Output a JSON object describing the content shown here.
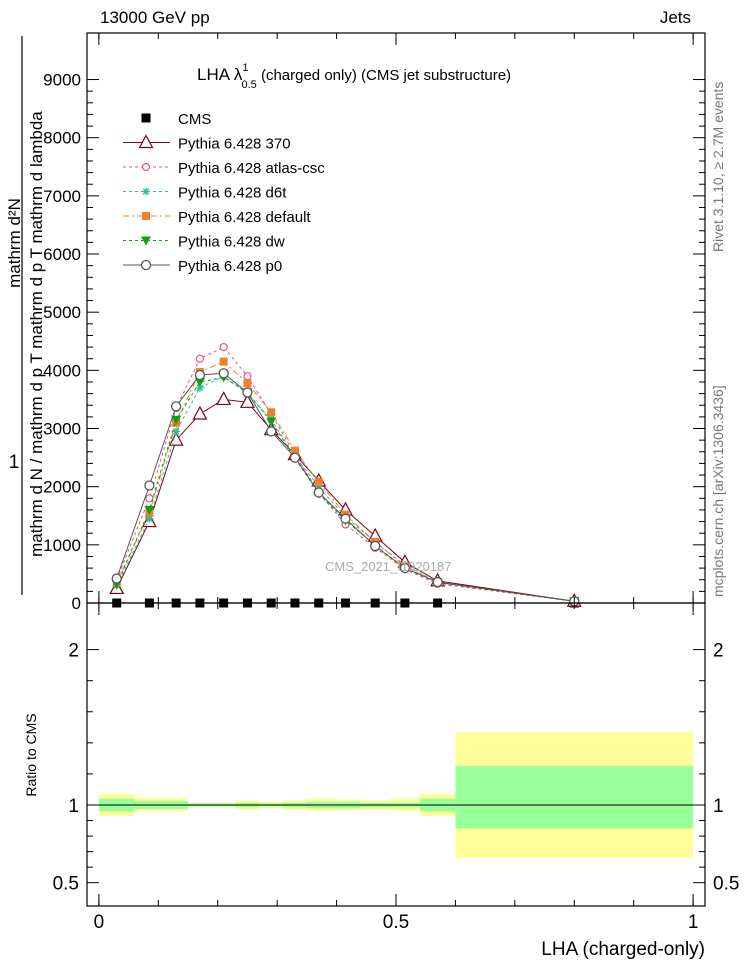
{
  "header": {
    "left": "13000 GeV pp",
    "right": "Jets"
  },
  "side_text": {
    "rivet": "Rivet 3.1.10, ≥ 2.7M events",
    "mcplots": "mcplots.cern.ch [arXiv:1306.3436]"
  },
  "watermark": "CMS_2021_I1920187",
  "colors": {
    "cms": "#000000",
    "p370": "#800020",
    "atlas": "#e8507a",
    "d6t": "#20c0a0",
    "default": "#f08030",
    "dw": "#10a010",
    "p0": "#555555",
    "band_inner": "#99ff99",
    "band_outer": "#ffff99"
  },
  "chart_data": [
    {
      "type": "line",
      "title": "LHA λ",
      "title_sup": "1",
      "title_sub": "0.5",
      "title_rest": " (charged only) (CMS jet substructure)",
      "ylabel_top": "mathrm d²N",
      "ylabel_bottom": "mathrm d p  T  mathrm d lambda",
      "ylabel_left": "1",
      "ylabel_mid": "mathrm d N / mathrm d p  T",
      "xlim": [
        -0.02,
        1.02
      ],
      "ylim": [
        0,
        9800
      ],
      "yticks": [
        0,
        1000,
        2000,
        3000,
        4000,
        5000,
        6000,
        7000,
        8000,
        9000
      ],
      "ytick_labels": [
        "0",
        "1000",
        "2000",
        "3000",
        "4000",
        "5000",
        "6000",
        "7000",
        "8000",
        "9000"
      ],
      "legend_position": "upper-left",
      "series": [
        {
          "name": "CMS",
          "key": "cms",
          "x": [
            0.03,
            0.085,
            0.13,
            0.17,
            0.21,
            0.25,
            0.29,
            0.33,
            0.37,
            0.415,
            0.465,
            0.515,
            0.57,
            0.8
          ],
          "y": [
            0,
            0,
            0,
            0,
            0,
            0,
            0,
            0,
            0,
            0,
            0,
            0,
            0,
            0
          ]
        },
        {
          "name": "Pythia 6.428 370",
          "key": "p370",
          "x": [
            0.03,
            0.085,
            0.13,
            0.17,
            0.21,
            0.25,
            0.29,
            0.33,
            0.37,
            0.415,
            0.465,
            0.515,
            0.57,
            0.8
          ],
          "y": [
            250,
            1400,
            2800,
            3250,
            3500,
            3450,
            2980,
            2550,
            2100,
            1600,
            1150,
            700,
            380,
            30
          ]
        },
        {
          "name": "Pythia 6.428 atlas-csc",
          "key": "atlas",
          "x": [
            0.03,
            0.085,
            0.13,
            0.17,
            0.21,
            0.25,
            0.29,
            0.33,
            0.37,
            0.415,
            0.465,
            0.515,
            0.57,
            0.8
          ],
          "y": [
            400,
            1800,
            3350,
            4200,
            4400,
            3900,
            3250,
            2550,
            1900,
            1350,
            950,
            580,
            330,
            30
          ]
        },
        {
          "name": "Pythia 6.428 d6t",
          "key": "d6t",
          "x": [
            0.03,
            0.085,
            0.13,
            0.17,
            0.21,
            0.25,
            0.29,
            0.33,
            0.37,
            0.415,
            0.465,
            0.515,
            0.57,
            0.8
          ],
          "y": [
            300,
            1450,
            2950,
            3700,
            3900,
            3600,
            3150,
            2520,
            2000,
            1480,
            1050,
            650,
            360,
            30
          ]
        },
        {
          "name": "Pythia 6.428 default",
          "key": "default",
          "x": [
            0.03,
            0.085,
            0.13,
            0.17,
            0.21,
            0.25,
            0.29,
            0.33,
            0.37,
            0.415,
            0.465,
            0.515,
            0.57,
            0.8
          ],
          "y": [
            350,
            1550,
            3100,
            3970,
            4150,
            3780,
            3280,
            2620,
            2080,
            1520,
            1050,
            630,
            350,
            30
          ]
        },
        {
          "name": "Pythia 6.428 dw",
          "key": "dw",
          "x": [
            0.03,
            0.085,
            0.13,
            0.17,
            0.21,
            0.25,
            0.29,
            0.33,
            0.37,
            0.415,
            0.465,
            0.515,
            0.57,
            0.8
          ],
          "y": [
            320,
            1600,
            3150,
            3800,
            3880,
            3620,
            3120,
            2490,
            1880,
            1420,
            990,
            600,
            350,
            30
          ]
        },
        {
          "name": "Pythia 6.428 p0",
          "key": "p0",
          "x": [
            0.03,
            0.085,
            0.13,
            0.17,
            0.21,
            0.25,
            0.29,
            0.33,
            0.37,
            0.415,
            0.465,
            0.515,
            0.57,
            0.8
          ],
          "y": [
            420,
            2020,
            3380,
            3920,
            3950,
            3620,
            2950,
            2500,
            1900,
            1450,
            980,
            600,
            360,
            30
          ]
        }
      ]
    },
    {
      "type": "area",
      "ylabel": "Ratio to CMS",
      "xlabel": "LHA (charged-only)",
      "xlim": [
        -0.02,
        1.02
      ],
      "ylim": [
        0.35,
        2.3
      ],
      "xticks": [
        0,
        0.5,
        1
      ],
      "xtick_labels": [
        "0",
        "0.5",
        "1"
      ],
      "yticks": [
        0.5,
        1,
        2
      ],
      "ytick_labels": [
        "0.5",
        "1",
        "2"
      ],
      "bands": [
        {
          "x0": 0.0,
          "x1": 0.06,
          "inner": [
            0.96,
            1.04
          ],
          "outer": [
            0.93,
            1.07
          ]
        },
        {
          "x0": 0.06,
          "x1": 0.15,
          "inner": [
            0.975,
            1.025
          ],
          "outer": [
            0.96,
            1.045
          ]
        },
        {
          "x0": 0.15,
          "x1": 0.23,
          "inner": [
            0.99,
            1.01
          ],
          "outer": [
            0.985,
            1.015
          ]
        },
        {
          "x0": 0.23,
          "x1": 0.27,
          "inner": [
            0.985,
            1.015
          ],
          "outer": [
            0.97,
            1.03
          ]
        },
        {
          "x0": 0.27,
          "x1": 0.31,
          "inner": [
            0.99,
            1.01
          ],
          "outer": [
            0.98,
            1.02
          ]
        },
        {
          "x0": 0.31,
          "x1": 0.35,
          "inner": [
            0.985,
            1.015
          ],
          "outer": [
            0.97,
            1.03
          ]
        },
        {
          "x0": 0.35,
          "x1": 0.4,
          "inner": [
            0.98,
            1.02
          ],
          "outer": [
            0.96,
            1.04
          ]
        },
        {
          "x0": 0.4,
          "x1": 0.44,
          "inner": [
            0.98,
            1.02
          ],
          "outer": [
            0.965,
            1.035
          ]
        },
        {
          "x0": 0.44,
          "x1": 0.49,
          "inner": [
            0.985,
            1.015
          ],
          "outer": [
            0.97,
            1.03
          ]
        },
        {
          "x0": 0.49,
          "x1": 0.54,
          "inner": [
            0.985,
            1.015
          ],
          "outer": [
            0.96,
            1.04
          ]
        },
        {
          "x0": 0.54,
          "x1": 0.6,
          "inner": [
            0.96,
            1.04
          ],
          "outer": [
            0.93,
            1.07
          ]
        },
        {
          "x0": 0.6,
          "x1": 1.0,
          "inner": [
            0.85,
            1.25
          ],
          "outer": [
            0.66,
            1.47
          ]
        }
      ]
    }
  ]
}
